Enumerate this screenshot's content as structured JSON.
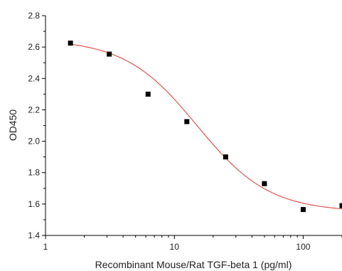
{
  "chart_data": {
    "type": "scatter",
    "title": "",
    "xlabel": "Recombinant Mouse/Rat TGF-beta 1 (pg/ml)",
    "ylabel": "OD450",
    "x_scale": "log",
    "xlim": [
      1,
      200
    ],
    "ylim": [
      1.4,
      2.8
    ],
    "x_ticks": [
      1,
      10,
      100
    ],
    "x_tick_labels": [
      "1",
      "10",
      "100"
    ],
    "y_ticks": [
      1.4,
      1.6,
      1.8,
      2.0,
      2.2,
      2.4,
      2.6,
      2.8
    ],
    "y_tick_labels": [
      "1.4",
      "1.6",
      "1.8",
      "2.0",
      "2.2",
      "2.4",
      "2.6",
      "2.8"
    ],
    "grid": false,
    "series": [
      {
        "type": "scatter",
        "marker": "square",
        "color": "#000000",
        "x": [
          1.5625,
          3.125,
          6.25,
          12.5,
          25,
          50,
          100,
          200
        ],
        "y": [
          2.625,
          2.555,
          2.3,
          2.125,
          1.9,
          1.73,
          1.565,
          1.59
        ]
      },
      {
        "type": "line",
        "fit": "4PL",
        "color": "#e8534f",
        "params": {
          "top": 2.65,
          "bottom": 1.55,
          "ec50": 15,
          "hill": 1.55
        }
      }
    ]
  }
}
